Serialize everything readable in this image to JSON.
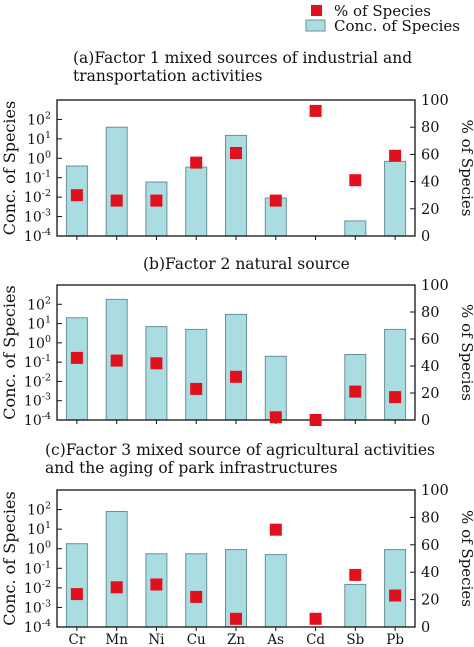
{
  "legend": {
    "marker_label": "% of Species",
    "bar_label": "Conc. of Species",
    "marker_color": "#e0101c",
    "bar_color": "#a9dde2",
    "bar_edge_color": "#6a8f99"
  },
  "chart_data": [
    {
      "type": "bar",
      "title": "(a)Factor 1 mixed sources of industrial and transportation activities",
      "title_lines": [
        "(a)Factor 1 mixed sources of industrial and",
        "transportation activities"
      ],
      "categories": [
        "Cr",
        "Mn",
        "Ni",
        "Cu",
        "Zn",
        "As",
        "Cd",
        "Sb",
        "Pb"
      ],
      "ylabel": "Conc. of Species",
      "y2label": "% of Species",
      "yscale": "log",
      "ylim": [
        0.0001,
        1000
      ],
      "y2lim": [
        0,
        100
      ],
      "series": [
        {
          "name": "Conc. of Species",
          "kind": "bar",
          "values": [
            0.4,
            40,
            0.06,
            0.35,
            15,
            0.009,
            null,
            0.0006,
            0.7
          ]
        },
        {
          "name": "% of Species",
          "kind": "marker",
          "values": [
            30,
            26,
            26,
            54,
            61,
            26,
            92,
            41,
            59
          ]
        }
      ]
    },
    {
      "type": "bar",
      "title": "(b)Factor 2 natural source",
      "title_lines": [
        "(b)Factor 2 natural source"
      ],
      "categories": [
        "Cr",
        "Mn",
        "Ni",
        "Cu",
        "Zn",
        "As",
        "Cd",
        "Sb",
        "Pb"
      ],
      "ylabel": "Conc. of Species",
      "y2label": "% of Species",
      "yscale": "log",
      "ylim": [
        0.0001,
        1000
      ],
      "y2lim": [
        0,
        100
      ],
      "series": [
        {
          "name": "Conc. of Species",
          "kind": "bar",
          "values": [
            20,
            180,
            7,
            5,
            30,
            0.2,
            null,
            0.25,
            5
          ]
        },
        {
          "name": "% of Species",
          "kind": "marker",
          "values": [
            46,
            44,
            42,
            23,
            32,
            2,
            0,
            21,
            17
          ]
        }
      ]
    },
    {
      "type": "bar",
      "title": "(c)Factor 3 mixed source of agricultural activities and the aging of park infrastructures",
      "title_lines": [
        "(c)Factor 3 mixed source of agricultural activities",
        "and the aging of park infrastructures"
      ],
      "categories": [
        "Cr",
        "Mn",
        "Ni",
        "Cu",
        "Zn",
        "As",
        "Cd",
        "Sb",
        "Pb"
      ],
      "ylabel": "Conc. of Species",
      "y2label": "% of Species",
      "yscale": "log",
      "ylim": [
        0.0001,
        1000
      ],
      "y2lim": [
        0,
        100
      ],
      "series": [
        {
          "name": "Conc. of Species",
          "kind": "bar",
          "values": [
            1.8,
            80,
            0.55,
            0.55,
            0.9,
            0.5,
            null,
            0.015,
            0.9
          ]
        },
        {
          "name": "% of Species",
          "kind": "marker",
          "values": [
            24,
            29,
            31,
            22,
            6,
            71,
            6,
            38,
            23
          ]
        }
      ]
    }
  ]
}
